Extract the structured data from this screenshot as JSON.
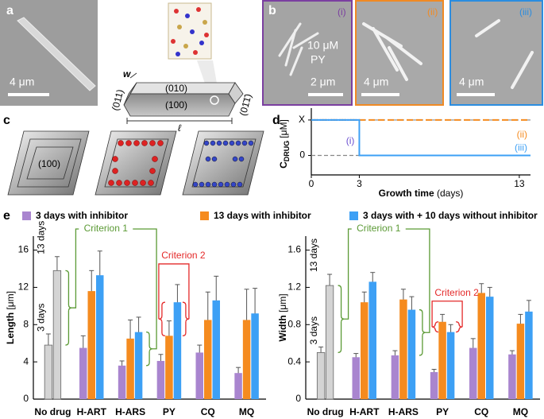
{
  "panels": {
    "a": {
      "label": "a",
      "scale_bar": "4 μm"
    },
    "schematic": {
      "face_top": "(010)",
      "face_front": "(100)",
      "face_left": "(011)",
      "face_right": "(01̄1̄)",
      "width": "w",
      "length": "ℓ"
    },
    "b": {
      "label": "b",
      "images": [
        {
          "label": "(i)",
          "scale_bar": "2 μm",
          "text": [
            "10 μM",
            "PY"
          ]
        },
        {
          "label": "(ii)",
          "scale_bar": "4 μm"
        },
        {
          "label": "(iii)",
          "scale_bar": "4 μm"
        }
      ]
    },
    "c": {
      "label": "c",
      "face": "(100)"
    },
    "d": {
      "label": "d"
    },
    "e": {
      "label": "e"
    }
  },
  "chart_data": [
    {
      "type": "line",
      "ylabel": "C",
      "ylabel_sub": "DRUG",
      "ylabel_unit": "[μM]",
      "xlabel": "Growth time",
      "xlabel_unit": "(days)",
      "xlim": [
        0,
        13.7
      ],
      "xticks": [
        0,
        3,
        13
      ],
      "ylim": [
        -0.55,
        1.2
      ],
      "yticks": [
        0,
        {
          "value": 1,
          "label": "X"
        }
      ],
      "grid": true,
      "series": [
        {
          "name": "(i)",
          "color": "#6a4fd0",
          "style": "dotted",
          "x": [
            0,
            3
          ],
          "values": [
            1,
            1
          ]
        },
        {
          "name": "(ii)",
          "color": "#f58b1f",
          "style": "dashed",
          "x": [
            0,
            13.7
          ],
          "values": [
            1,
            1
          ]
        },
        {
          "name": "(iii)",
          "color": "#3da0f5",
          "style": "solid",
          "x": [
            0,
            3,
            3,
            13.7
          ],
          "values": [
            1,
            1,
            0,
            0
          ]
        }
      ]
    },
    {
      "type": "bar",
      "ylabel": "Length",
      "ylabel_unit": "[μm]",
      "categories": [
        "No drug",
        "H-ART",
        "H-ARS",
        "PY",
        "CQ",
        "MQ"
      ],
      "ylim": [
        0,
        17.5
      ],
      "yticks": [
        0,
        4,
        8,
        12,
        16
      ],
      "series": [
        {
          "name": "3 days with inhibitor",
          "color": "#a985cf",
          "values": [
            null,
            5.5,
            3.6,
            4.1,
            5.0,
            2.8
          ],
          "errors": [
            null,
            1.3,
            0.5,
            0.7,
            0.8,
            0.6
          ]
        },
        {
          "name": "13 days with inhibitor",
          "color": "#f58b1f",
          "values": [
            null,
            11.6,
            6.5,
            6.8,
            8.5,
            8.5
          ],
          "errors": [
            null,
            2.2,
            2.0,
            1.6,
            3.0,
            3.3
          ]
        },
        {
          "name": "3 days with + 10 days without inhibitor",
          "color": "#3da0f5",
          "values": [
            null,
            13.3,
            7.2,
            10.4,
            10.6,
            9.2
          ],
          "errors": [
            null,
            2.6,
            1.6,
            1.9,
            2.6,
            2.7
          ]
        }
      ],
      "control": {
        "color": "#d4d4d4",
        "values": [
          5.8,
          13.8
        ],
        "errors": [
          1.2,
          1.5
        ],
        "labels": [
          "3 days",
          "13 days"
        ]
      },
      "annotations": [
        {
          "text": "Criterion 1",
          "color": "#5b9a35"
        },
        {
          "text": "Criterion 2",
          "color": "#e42a2a"
        }
      ]
    },
    {
      "type": "bar",
      "ylabel": "Width",
      "ylabel_unit": "[μm]",
      "categories": [
        "No drug",
        "H-ART",
        "H-ARS",
        "PY",
        "CQ",
        "MQ"
      ],
      "ylim": [
        0,
        1.75
      ],
      "yticks": [
        0,
        0.4,
        0.8,
        1.2,
        1.6
      ],
      "series": [
        {
          "color": "#a985cf",
          "values": [
            null,
            0.45,
            0.47,
            0.29,
            0.55,
            0.48
          ],
          "errors": [
            null,
            0.04,
            0.05,
            0.03,
            0.1,
            0.04
          ]
        },
        {
          "color": "#f58b1f",
          "values": [
            null,
            1.04,
            1.07,
            0.83,
            1.14,
            0.81
          ],
          "errors": [
            null,
            0.11,
            0.11,
            0.08,
            0.1,
            0.1
          ]
        },
        {
          "color": "#3da0f5",
          "values": [
            null,
            1.26,
            0.96,
            0.72,
            1.1,
            0.94
          ],
          "errors": [
            null,
            0.1,
            0.14,
            0.08,
            0.1,
            0.12
          ]
        }
      ],
      "control": {
        "color": "#d4d4d4",
        "values": [
          0.5,
          1.22
        ],
        "errors": [
          0.06,
          0.12
        ],
        "labels": [
          "3 days",
          "13 days"
        ]
      },
      "annotations": [
        {
          "text": "Criterion 1",
          "color": "#5b9a35"
        },
        {
          "text": "Criterion 2",
          "color": "#e42a2a"
        }
      ]
    }
  ]
}
